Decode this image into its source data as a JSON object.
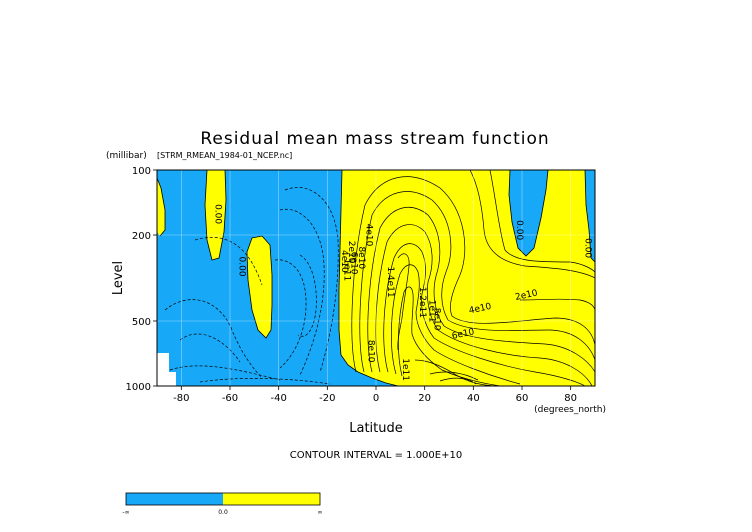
{
  "title": "Residual mean mass stream function",
  "subtitle": "[STRM_RMEAN_1984-01_NCEP.nc]",
  "y_unit": "(millibar)",
  "y_title": "Level",
  "x_title": "Latitude",
  "x_unit": "(degrees_north)",
  "contour_interval_text": "CONTOUR INTERVAL = 1.000E+10",
  "colors": {
    "negative": "#18A8F8",
    "positive": "#FFFF00",
    "missing": "#FFFFFF",
    "line": "#000000"
  },
  "colorbar": {
    "labels": [
      "-∞",
      "0.0",
      "∞"
    ],
    "colors": [
      "#18A8F8",
      "#FFFF00"
    ]
  },
  "chart_data": {
    "type": "heatmap",
    "title": "Residual mean mass stream function",
    "subtitle": "[STRM_RMEAN_1984-01_NCEP.nc]",
    "xlabel": "Latitude",
    "xunit": "(degrees_north)",
    "ylabel": "Level",
    "yunit": "(millibar)",
    "xlim": [
      -90,
      90
    ],
    "ylim": [
      1000,
      100
    ],
    "y_scale": "log",
    "x_ticks": [
      -80,
      -60,
      -40,
      -20,
      0,
      20,
      40,
      60,
      80
    ],
    "y_ticks": [
      100,
      200,
      500,
      1000
    ],
    "grid": true,
    "contour_interval": 10000000000,
    "fill_rule": "negative values blue, positive values yellow",
    "contour_labels": [
      "0.00",
      "0.00",
      "0.00",
      "0.00",
      "2e10",
      "4e10",
      "6e10",
      "8e10",
      "1e11",
      "1.2e11",
      "1.4e11",
      "2e10",
      "4e10",
      "6e10",
      "8e10",
      "1e11",
      "1e11",
      "2e10",
      "4e10"
    ],
    "label_positions": [
      {
        "text": "0.00",
        "lat": -66,
        "p": 160
      },
      {
        "text": "0.00",
        "lat": -56,
        "p": 280
      },
      {
        "text": "0.00",
        "lat": 58,
        "p": 190
      },
      {
        "text": "0.00",
        "lat": 86,
        "p": 230
      },
      {
        "text": "2e10",
        "lat": -11,
        "p": 240
      },
      {
        "text": "4e10",
        "lat": -14,
        "p": 265
      },
      {
        "text": "6e10",
        "lat": -10,
        "p": 270
      },
      {
        "text": "8e10",
        "lat": -7,
        "p": 255
      },
      {
        "text": "1e11",
        "lat": -13,
        "p": 290
      },
      {
        "text": "4e10",
        "lat": -4,
        "p": 200
      },
      {
        "text": "1.4e11",
        "lat": 5,
        "p": 330
      },
      {
        "text": "1.2e11",
        "lat": 18,
        "p": 410
      },
      {
        "text": "1e11",
        "lat": 22,
        "p": 450
      },
      {
        "text": "8e10",
        "lat": 24,
        "p": 490
      },
      {
        "text": "2e10",
        "lat": 62,
        "p": 390
      },
      {
        "text": "4e10",
        "lat": 43,
        "p": 450
      },
      {
        "text": "6e10",
        "lat": 36,
        "p": 590
      },
      {
        "text": "8e10",
        "lat": -3,
        "p": 690
      },
      {
        "text": "1e11",
        "lat": 11,
        "p": 840
      }
    ]
  }
}
